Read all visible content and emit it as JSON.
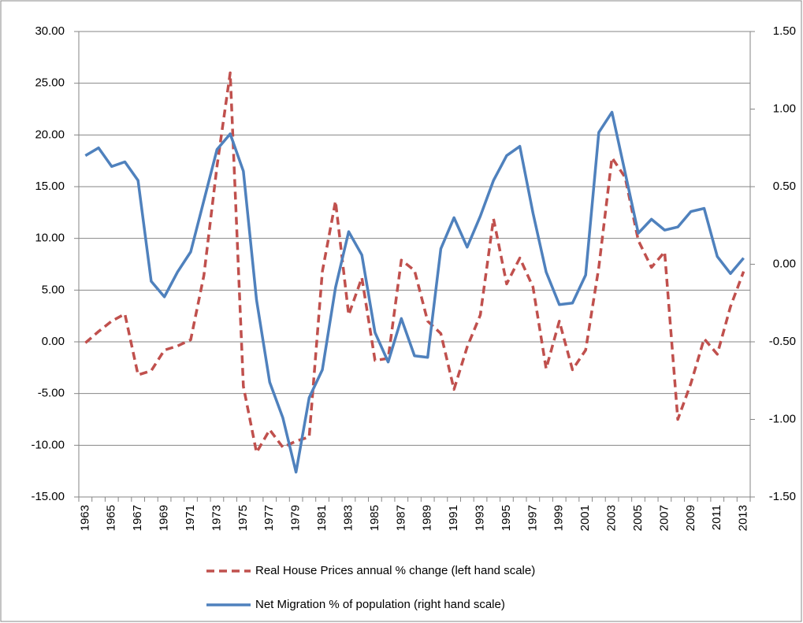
{
  "chart_data": {
    "type": "line",
    "categories": [
      "1963",
      null,
      "1965",
      null,
      "1967",
      null,
      "1969",
      null,
      "1971",
      null,
      "1973",
      null,
      "1975",
      null,
      "1977",
      null,
      "1979",
      null,
      "1981",
      null,
      "1983",
      null,
      "1985",
      null,
      "1987",
      null,
      "1989",
      null,
      "1991",
      null,
      "1993",
      null,
      "1995",
      null,
      "1997",
      null,
      "1999",
      null,
      "2001",
      null,
      "2003",
      null,
      "2005",
      null,
      "2007",
      null,
      "2009",
      null,
      "2011",
      null,
      "2013"
    ],
    "series": [
      {
        "name": "Real House Prices annual % change (left hand scale)",
        "color": "#c0504d",
        "dashed": true,
        "values": [
          -0.1,
          1,
          2,
          2.7,
          -3.2,
          -2.8,
          -0.8,
          -0.4,
          0.2,
          6.4,
          17,
          26,
          -4.3,
          -10.7,
          -8.5,
          -10.2,
          -9.6,
          -9.2,
          6.8,
          13.6,
          2.6,
          6.2,
          -1.8,
          -1.6,
          7.9,
          6.9,
          2,
          0.8,
          -4.6,
          -0.5,
          2.6,
          11.9,
          5.6,
          8.1,
          5.3,
          -2.6,
          2,
          -2.7,
          -0.8,
          7.2,
          17.8,
          15.9,
          9.8,
          7.2,
          8.7,
          -7.5,
          -4,
          0.3,
          -1.2,
          3.4,
          6.8
        ]
      },
      {
        "name": "Net Migration % of population (right hand scale)",
        "color": "#4f81bd",
        "dashed": false,
        "axis": "y2",
        "values": [
          0.7,
          0.75,
          0.63,
          0.66,
          0.54,
          -0.11,
          -0.21,
          -0.05,
          0.08,
          0.41,
          0.74,
          0.84,
          0.6,
          -0.23,
          -0.76,
          -0.99,
          -1.34,
          -0.86,
          -0.68,
          -0.15,
          0.21,
          0.06,
          -0.44,
          -0.63,
          -0.35,
          -0.59,
          -0.6,
          0.1,
          0.3,
          0.11,
          0.31,
          0.54,
          0.7,
          0.76,
          0.33,
          -0.05,
          -0.26,
          -0.25,
          -0.07,
          0.85,
          0.98,
          0.59,
          0.2,
          0.29,
          0.22,
          0.24,
          0.34,
          0.36,
          0.05,
          -0.06,
          0.04
        ]
      }
    ],
    "ylim": [
      -15,
      30
    ],
    "yticks": [
      {
        "value": -15,
        "label": "-15.00"
      },
      {
        "value": -10,
        "label": "-10.00"
      },
      {
        "value": -5,
        "label": "-5.00"
      },
      {
        "value": 0,
        "label": "0.00"
      },
      {
        "value": 5,
        "label": "5.00"
      },
      {
        "value": 10,
        "label": "10.00"
      },
      {
        "value": 15,
        "label": "15.00"
      },
      {
        "value": 20,
        "label": "20.00"
      },
      {
        "value": 25,
        "label": "25.00"
      },
      {
        "value": 30,
        "label": "30.00"
      }
    ],
    "y2lim": [
      -1.5,
      1.5
    ],
    "y2ticks": [
      {
        "value": -1.5,
        "label": "-1.50"
      },
      {
        "value": -1,
        "label": "-1.00"
      },
      {
        "value": -0.5,
        "label": "-0.50"
      },
      {
        "value": 0,
        "label": "0.00"
      },
      {
        "value": 0.5,
        "label": "0.50"
      },
      {
        "value": 1,
        "label": "1.00"
      },
      {
        "value": 1.5,
        "label": "1.50"
      }
    ],
    "grid": true,
    "legend": "bottom"
  }
}
